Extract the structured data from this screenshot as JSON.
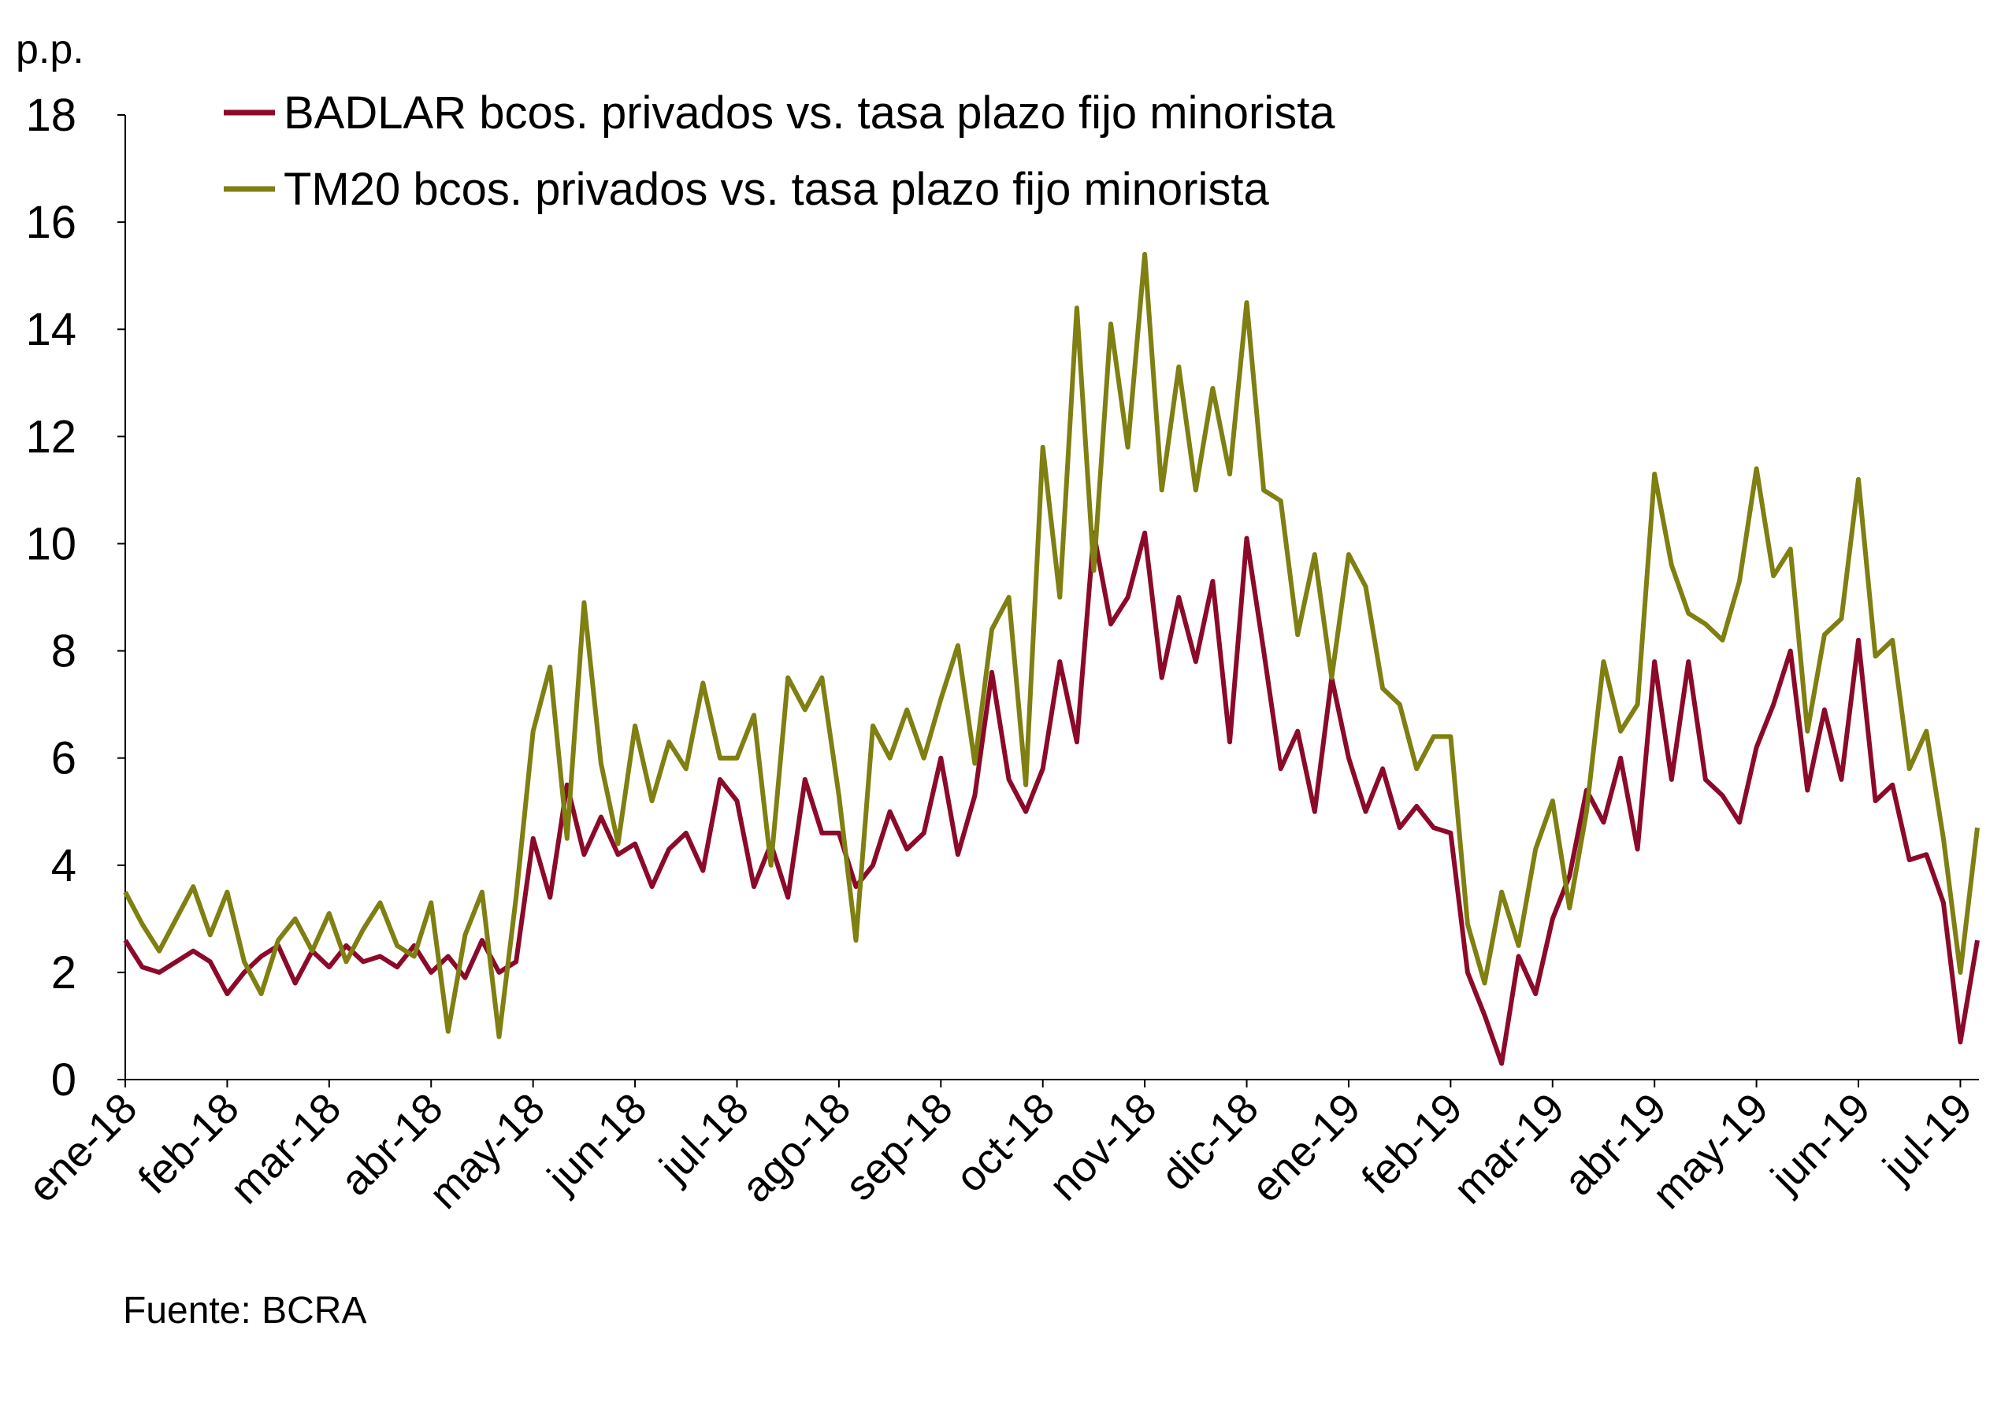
{
  "chart_data": {
    "type": "line",
    "ylabel": "p.p.",
    "source": "Fuente: BCRA",
    "categories": [
      "ene-18",
      null,
      null,
      null,
      null,
      null,
      "feb-18",
      null,
      null,
      null,
      null,
      null,
      "mar-18",
      null,
      null,
      null,
      null,
      null,
      "abr-18",
      null,
      null,
      null,
      null,
      null,
      "may-18",
      null,
      null,
      null,
      null,
      null,
      "jun-18",
      null,
      null,
      null,
      null,
      null,
      "jul-18",
      null,
      null,
      null,
      null,
      null,
      "ago-18",
      null,
      null,
      null,
      null,
      null,
      "sep-18",
      null,
      null,
      null,
      null,
      null,
      "oct-18",
      null,
      null,
      null,
      null,
      null,
      "nov-18",
      null,
      null,
      null,
      null,
      null,
      "dic-18",
      null,
      null,
      null,
      null,
      null,
      "ene-19",
      null,
      null,
      null,
      null,
      null,
      "feb-19",
      null,
      null,
      null,
      null,
      null,
      "mar-19",
      null,
      null,
      null,
      null,
      null,
      "abr-19",
      null,
      null,
      null,
      null,
      null,
      "may-19",
      null,
      null,
      null,
      null,
      null,
      "jun-19",
      null,
      null,
      null,
      null,
      null,
      "jul-19",
      null
    ],
    "series": [
      {
        "name": "BADLAR bcos. privados vs. tasa plazo fijo minorista",
        "color": "#8b0a2a",
        "values": [
          2.6,
          2.1,
          2.0,
          2.2,
          2.4,
          2.2,
          1.6,
          2.0,
          2.3,
          2.5,
          1.8,
          2.4,
          2.1,
          2.5,
          2.2,
          2.3,
          2.1,
          2.5,
          2.0,
          2.3,
          1.9,
          2.6,
          2.0,
          2.2,
          4.5,
          3.4,
          5.5,
          4.2,
          4.9,
          4.2,
          4.4,
          3.6,
          4.3,
          4.6,
          3.9,
          5.6,
          5.2,
          3.6,
          4.4,
          3.4,
          5.6,
          4.6,
          4.6,
          3.6,
          4.0,
          5.0,
          4.3,
          4.6,
          6.0,
          4.2,
          5.3,
          7.6,
          5.6,
          5.0,
          5.8,
          7.8,
          6.3,
          10.2,
          8.5,
          9.0,
          10.2,
          7.5,
          9.0,
          7.8,
          9.3,
          6.3,
          10.1,
          8.0,
          5.8,
          6.5,
          5.0,
          7.5,
          6.0,
          5.0,
          5.8,
          4.7,
          5.1,
          4.7,
          4.6,
          2.0,
          1.2,
          0.3,
          2.3,
          1.6,
          3.0,
          3.8,
          5.4,
          4.8,
          6.0,
          4.3,
          7.8,
          5.6,
          7.8,
          5.6,
          5.3,
          4.8,
          6.2,
          7.0,
          8.0,
          5.4,
          6.9,
          5.6,
          8.2,
          5.2,
          5.5,
          4.1,
          4.2,
          3.3,
          0.7,
          2.6
        ]
      },
      {
        "name": "TM20 bcos. privados vs. tasa plazo fijo minorista",
        "color": "#7f7f12",
        "values": [
          3.5,
          2.9,
          2.4,
          3.0,
          3.6,
          2.7,
          3.5,
          2.2,
          1.6,
          2.6,
          3.0,
          2.4,
          3.1,
          2.2,
          2.8,
          3.3,
          2.5,
          2.3,
          3.3,
          0.9,
          2.7,
          3.5,
          0.8,
          3.4,
          6.5,
          7.7,
          4.5,
          8.9,
          5.9,
          4.4,
          6.6,
          5.2,
          6.3,
          5.8,
          7.4,
          6.0,
          6.0,
          6.8,
          4.0,
          7.5,
          6.9,
          7.5,
          5.3,
          2.6,
          6.6,
          6.0,
          6.9,
          6.0,
          7.1,
          8.1,
          5.9,
          8.4,
          9.0,
          5.5,
          11.8,
          9.0,
          14.4,
          9.5,
          14.1,
          11.8,
          15.4,
          11.0,
          13.3,
          11.0,
          12.9,
          11.3,
          14.5,
          11.0,
          10.8,
          8.3,
          9.8,
          7.5,
          9.8,
          9.2,
          7.3,
          7.0,
          5.8,
          6.4,
          6.4,
          2.9,
          1.8,
          3.5,
          2.5,
          4.3,
          5.2,
          3.2,
          5.0,
          7.8,
          6.5,
          7.0,
          11.3,
          9.6,
          8.7,
          8.5,
          8.2,
          9.3,
          11.4,
          9.4,
          9.9,
          6.5,
          8.3,
          8.6,
          11.2,
          7.9,
          8.2,
          5.8,
          6.5,
          4.5,
          2.0,
          4.7
        ]
      }
    ],
    "ylim": [
      0,
      18
    ],
    "yticks": [
      0,
      2,
      4,
      6,
      8,
      10,
      12,
      14,
      16,
      18
    ],
    "grid": false,
    "legend": "top-left"
  }
}
